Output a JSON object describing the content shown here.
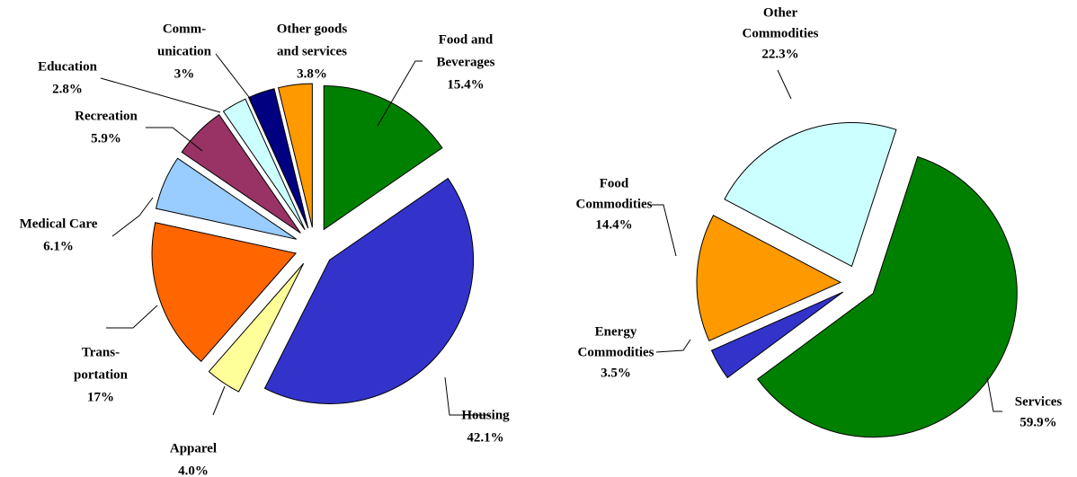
{
  "chart_data": [
    {
      "type": "pie",
      "categories": [
        [
          "Food and",
          "Beverages"
        ],
        [
          "Housing"
        ],
        [
          "Apparel"
        ],
        [
          "Trans-",
          "portation"
        ],
        [
          "Medical Care"
        ],
        [
          "Recreation"
        ],
        [
          "Education"
        ],
        [
          "Comm-",
          "unication"
        ],
        [
          "Other goods",
          "and services"
        ]
      ],
      "values": [
        15.4,
        42.1,
        4.0,
        17,
        6.1,
        5.9,
        2.8,
        3,
        3.8
      ],
      "value_labels": [
        "15.4%",
        "42.1%",
        "4.0%",
        "17%",
        "6.1%",
        "5.9%",
        "2.8%",
        "3%",
        "3.8%"
      ],
      "colors": [
        "#008000",
        "#3333cc",
        "#ffff99",
        "#ff6600",
        "#99ccff",
        "#993366",
        "#ccffff",
        "#000080",
        "#ff9900"
      ]
    },
    {
      "type": "pie",
      "categories": [
        [
          "Services"
        ],
        [
          "Energy",
          "Commodities"
        ],
        [
          "Food",
          "Commodities"
        ],
        [
          "Other",
          "Commodities"
        ]
      ],
      "values": [
        59.9,
        3.5,
        14.4,
        22.3
      ],
      "value_labels": [
        "59.9%",
        "3.5%",
        "14.4%",
        "22.3%"
      ],
      "colors": [
        "#008000",
        "#3333cc",
        "#ff9900",
        "#ccffff"
      ]
    }
  ]
}
